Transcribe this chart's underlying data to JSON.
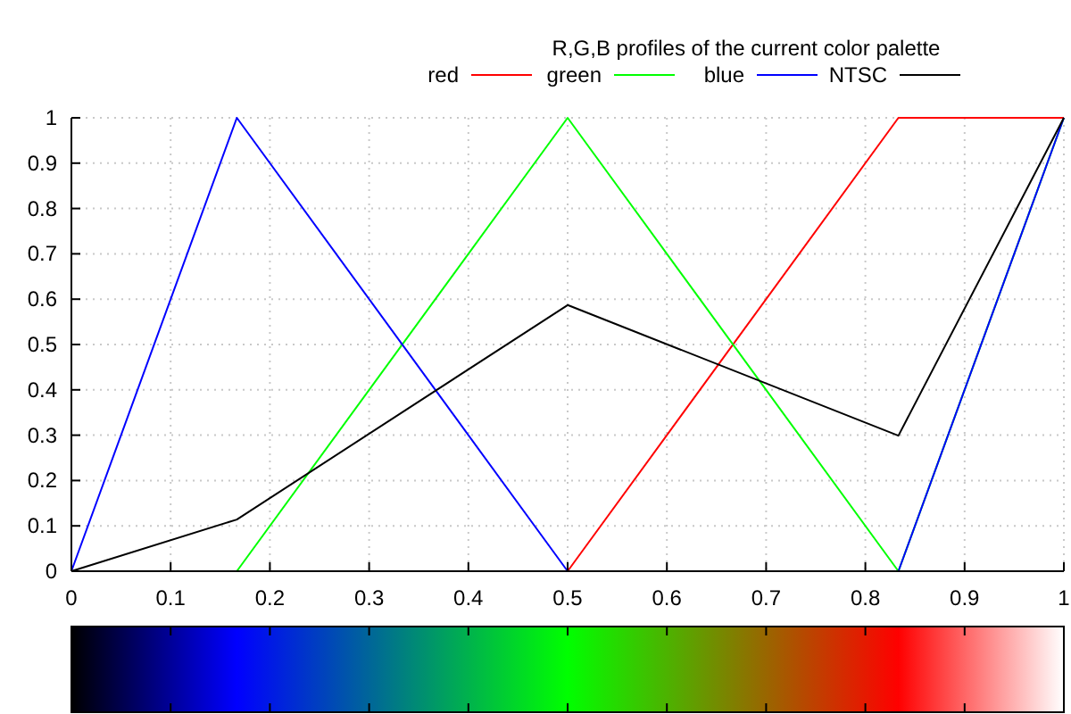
{
  "chart_data": {
    "type": "line",
    "title": "R,G,B profiles of the current color palette",
    "x": [
      0,
      0.1667,
      0.5,
      0.8333,
      1
    ],
    "series": [
      {
        "name": "red",
        "color": "#ff0000",
        "values": [
          0,
          0,
          0,
          1,
          1
        ]
      },
      {
        "name": "green",
        "color": "#00ff00",
        "values": [
          0,
          0,
          1,
          0,
          1
        ]
      },
      {
        "name": "blue",
        "color": "#0000ff",
        "values": [
          0,
          1,
          0,
          0,
          1
        ]
      },
      {
        "name": "NTSC",
        "color": "#000000",
        "values": [
          0,
          0.114,
          0.587,
          0.299,
          1
        ]
      }
    ],
    "xlim": [
      0,
      1
    ],
    "ylim": [
      0,
      1
    ],
    "xticks": [
      0,
      0.1,
      0.2,
      0.3,
      0.4,
      0.5,
      0.6,
      0.7,
      0.8,
      0.9,
      1
    ],
    "yticks": [
      0,
      0.1,
      0.2,
      0.3,
      0.4,
      0.5,
      0.6,
      0.7,
      0.8,
      0.9,
      1
    ],
    "grid": true,
    "legend": "top right",
    "marker": "none",
    "line_style": "solid"
  }
}
